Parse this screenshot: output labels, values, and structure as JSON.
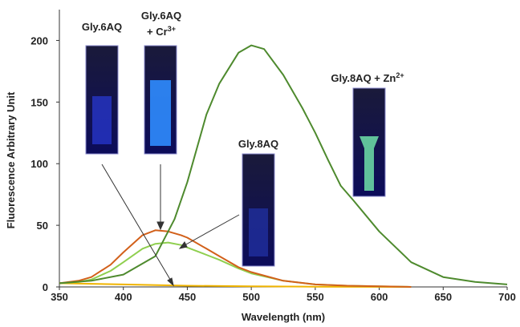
{
  "chart_data": {
    "type": "line",
    "x_label": "Wavelength (nm)",
    "y_label": "Fluorescence Arbitrary Unit",
    "xlim": [
      350,
      700
    ],
    "ylim": [
      0,
      225
    ],
    "xticks": [
      350,
      400,
      450,
      500,
      550,
      600,
      650,
      700
    ],
    "yticks": [
      0,
      50,
      100,
      150,
      200
    ],
    "grid": false,
    "series": [
      {
        "color": "#4e8a2e",
        "x": [
          350,
          375,
          400,
          425,
          440,
          450,
          465,
          475,
          490,
          500,
          510,
          525,
          540,
          550,
          560,
          570,
          580,
          600,
          625,
          650,
          675,
          700
        ],
        "values": [
          3,
          5,
          10,
          25,
          55,
          85,
          140,
          165,
          190,
          196,
          193,
          172,
          145,
          125,
          103,
          82,
          70,
          45,
          20,
          8,
          4,
          2
        ]
      },
      {
        "color": "#d2601a",
        "x": [
          350,
          365,
          375,
          390,
          400,
          415,
          425,
          435,
          445,
          450,
          465,
          475,
          490,
          500,
          525,
          550,
          575,
          600,
          625
        ],
        "values": [
          3,
          5,
          8,
          18,
          28,
          42,
          46,
          45,
          42,
          40,
          31,
          25,
          16,
          12,
          5,
          2,
          1,
          0.5,
          0
        ]
      },
      {
        "color": "#8fcf4f",
        "x": [
          350,
          365,
          375,
          390,
          400,
          415,
          425,
          435,
          445,
          450,
          465,
          475,
          490,
          500,
          525,
          550,
          575,
          600,
          625
        ],
        "values": [
          3,
          4,
          6,
          13,
          20,
          31,
          35,
          36,
          34,
          32,
          26,
          22,
          15,
          11,
          5,
          2,
          1,
          0.5,
          0
        ]
      },
      {
        "color": "#f0b400",
        "x": [
          350,
          400,
          450,
          500,
          550,
          625
        ],
        "values": [
          3,
          2,
          1,
          0.5,
          0.2,
          0
        ]
      }
    ],
    "annotations": [
      {
        "text": "Gly.6AQ"
      },
      {
        "text": "Gly.6AQ",
        "line2": "+ Cr",
        "sup": "3+"
      },
      {
        "text": "Gly.8AQ"
      },
      {
        "text": "Gly.8AQ + Zn",
        "sup": "2+"
      }
    ]
  }
}
